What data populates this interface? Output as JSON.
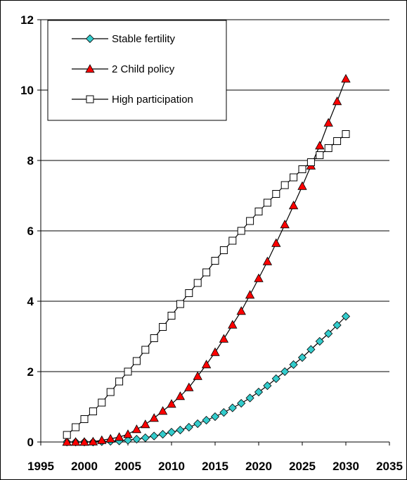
{
  "chart_data": {
    "type": "line",
    "title": "",
    "xlabel": "",
    "ylabel": "",
    "xlim": [
      1995,
      2035
    ],
    "ylim": [
      0,
      12
    ],
    "xticks": [
      1995,
      2000,
      2005,
      2010,
      2015,
      2020,
      2025,
      2030,
      2035
    ],
    "yticks": [
      0,
      2,
      4,
      6,
      8,
      10,
      12
    ],
    "grid": "horizontal",
    "legend_position": "top-left",
    "x": [
      1998,
      1999,
      2000,
      2001,
      2002,
      2003,
      2004,
      2005,
      2006,
      2007,
      2008,
      2009,
      2010,
      2011,
      2012,
      2013,
      2014,
      2015,
      2016,
      2017,
      2018,
      2019,
      2020,
      2021,
      2022,
      2023,
      2024,
      2025,
      2026,
      2027,
      2028,
      2029,
      2030
    ],
    "series": [
      {
        "name": "Stable fertility",
        "marker": "diamond",
        "color": "#33cccc",
        "values": [
          0,
          0,
          0,
          0,
          0.01,
          0.02,
          0.03,
          0.05,
          0.08,
          0.12,
          0.17,
          0.22,
          0.28,
          0.34,
          0.42,
          0.52,
          0.62,
          0.72,
          0.84,
          0.97,
          1.1,
          1.25,
          1.42,
          1.6,
          1.8,
          2.0,
          2.2,
          2.4,
          2.63,
          2.86,
          3.08,
          3.32,
          3.57
        ]
      },
      {
        "name": "2 Child policy",
        "marker": "triangle",
        "color": "#ff0000",
        "values": [
          0,
          0,
          0,
          0.01,
          0.05,
          0.09,
          0.14,
          0.22,
          0.36,
          0.5,
          0.68,
          0.88,
          1.08,
          1.3,
          1.55,
          1.87,
          2.2,
          2.55,
          2.93,
          3.33,
          3.72,
          4.18,
          4.65,
          5.13,
          5.65,
          6.18,
          6.72,
          7.27,
          7.85,
          8.42,
          9.07,
          9.68,
          10.32
        ]
      },
      {
        "name": "High participation",
        "marker": "square",
        "color": "#ffffff",
        "values": [
          0.2,
          0.42,
          0.65,
          0.87,
          1.12,
          1.42,
          1.72,
          2.0,
          2.3,
          2.62,
          2.95,
          3.27,
          3.59,
          3.92,
          4.23,
          4.52,
          4.82,
          5.15,
          5.45,
          5.72,
          6.0,
          6.28,
          6.55,
          6.8,
          7.05,
          7.3,
          7.52,
          7.75,
          7.95,
          8.15,
          8.35,
          8.55,
          8.75
        ]
      }
    ]
  }
}
